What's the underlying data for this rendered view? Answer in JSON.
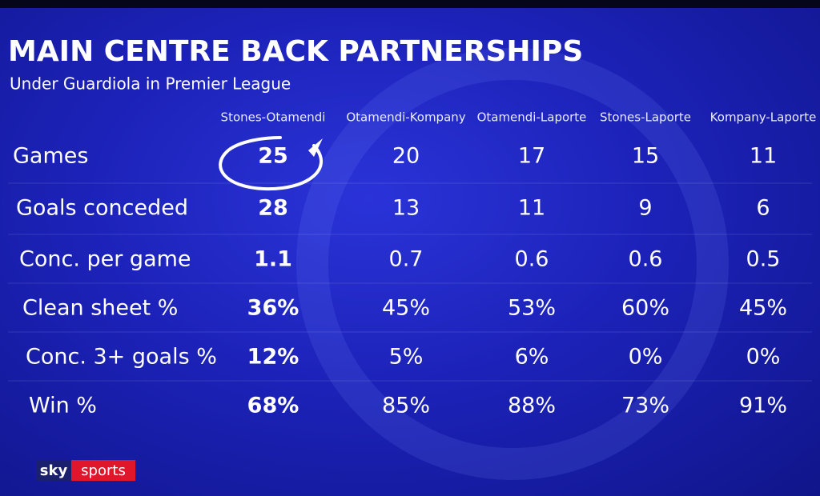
{
  "header": {
    "title": "MAIN CENTRE BACK PARTNERSHIPS",
    "subtitle": "Under Guardiola in Premier League"
  },
  "table": {
    "columns": [
      "Stones-Otamendi",
      "Otamendi-Kompany",
      "Otamendi-Laporte",
      "Stones-Laporte",
      "Kompany-Laporte"
    ],
    "rows": [
      [
        "Games",
        "25",
        "20",
        "17",
        "15",
        "11"
      ],
      [
        "Goals conceded",
        "28",
        "13",
        "11",
        "9",
        "6"
      ],
      [
        "Conc. per game",
        "1.1",
        "0.7",
        "0.6",
        "0.6",
        "0.5"
      ],
      [
        "Clean sheet %",
        "36%",
        "45%",
        "53%",
        "60%",
        "45%"
      ],
      [
        "Conc. 3+ goals %",
        "12%",
        "5%",
        "6%",
        "0%",
        "0%"
      ],
      [
        "Win %",
        "68%",
        "85%",
        "88%",
        "73%",
        "91%"
      ]
    ]
  },
  "logo": {
    "sky": "sky",
    "sports": "sports"
  }
}
